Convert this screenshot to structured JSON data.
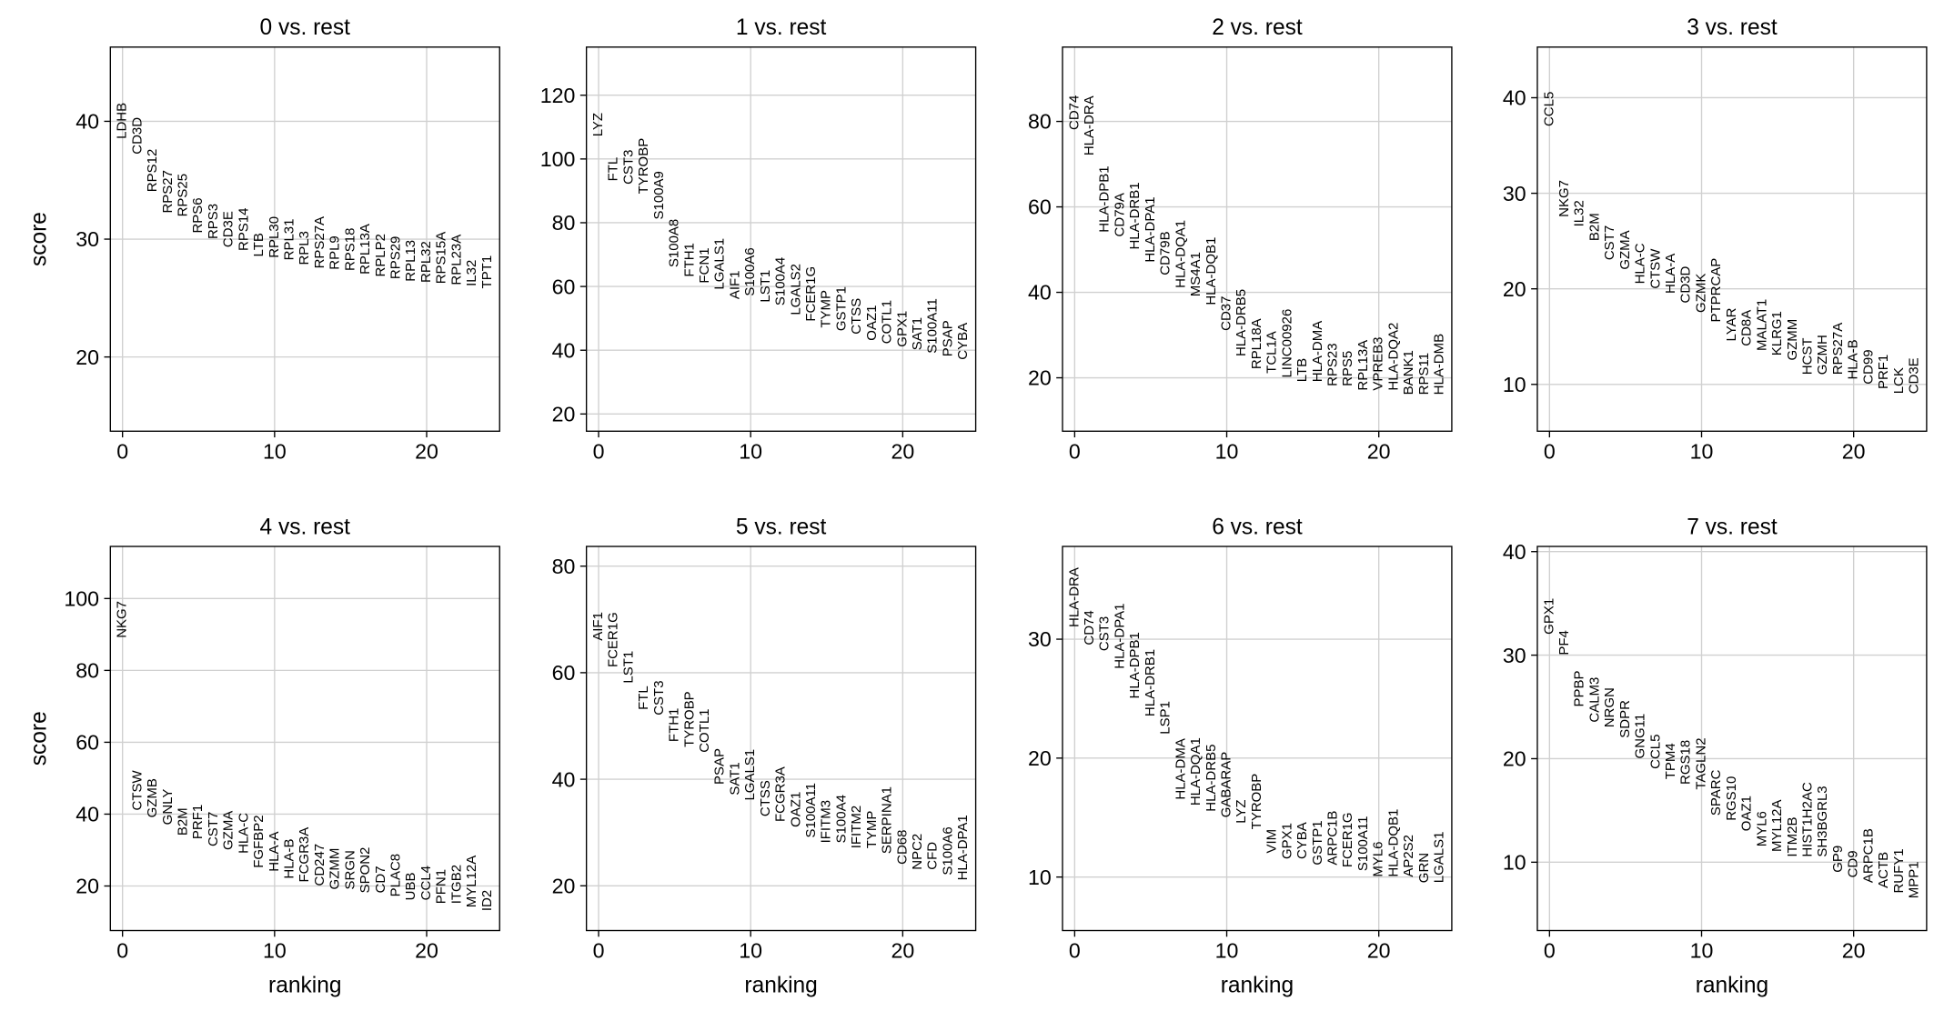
{
  "chart_data": [
    {
      "type": "scatter",
      "title": "0 vs. rest",
      "ylabel": "score",
      "x": [
        0,
        1,
        2,
        3,
        4,
        5,
        6,
        7,
        8,
        9,
        10,
        11,
        12,
        13,
        14,
        15,
        16,
        17,
        18,
        19,
        20,
        21,
        22,
        23,
        24
      ],
      "labels": [
        "LDHB",
        "CD3D",
        "RPS12",
        "RPS27",
        "RPS25",
        "RPS6",
        "RPS3",
        "CD3E",
        "RPS14",
        "LTB",
        "RPL30",
        "RPL31",
        "RPL3",
        "RPS27A",
        "RPL9",
        "RPS18",
        "RPL13A",
        "RPLP2",
        "RPS29",
        "RPL13",
        "RPL32",
        "RPS15A",
        "RPL23A",
        "IL32",
        "TPT1"
      ],
      "values": [
        38.5,
        37.2,
        34,
        32.2,
        31.9,
        30.5,
        30,
        29.3,
        29,
        28.5,
        28.4,
        28.2,
        27.8,
        27.5,
        27.4,
        27.3,
        27,
        26.8,
        26.6,
        26.4,
        26.3,
        26.2,
        26.1,
        26,
        25.8
      ],
      "xlim": [
        -0.8,
        24.8
      ],
      "ylim": [
        13.7,
        46.3
      ],
      "xticks": [
        0,
        10,
        20
      ],
      "yticks": [
        20,
        30,
        40
      ],
      "grid": true
    },
    {
      "type": "scatter",
      "title": "1 vs. rest",
      "x": [
        0,
        1,
        2,
        3,
        4,
        5,
        6,
        7,
        8,
        9,
        10,
        11,
        12,
        13,
        14,
        15,
        16,
        17,
        18,
        19,
        20,
        21,
        22,
        23,
        24
      ],
      "labels": [
        "LYZ",
        "FTL",
        "CST3",
        "TYROBP",
        "S100A9",
        "S100A8",
        "FTH1",
        "FCN1",
        "LGALS1",
        "AIF1",
        "S100A6",
        "LST1",
        "S100A4",
        "LGALS2",
        "FCER1G",
        "TYMP",
        "GSTP1",
        "CTSS",
        "OAZ1",
        "COTL1",
        "GPX1",
        "SAT1",
        "S100A11",
        "PSAP",
        "CYBA"
      ],
      "values": [
        107,
        93,
        92,
        89,
        81,
        66,
        63,
        61,
        59,
        56,
        57,
        55,
        54,
        51,
        49,
        47,
        46,
        45,
        43,
        42,
        41,
        40,
        39,
        38,
        37
      ],
      "xlim": [
        -0.8,
        24.8
      ],
      "ylim": [
        14.6,
        135.1
      ],
      "xticks": [
        0,
        10,
        20
      ],
      "yticks": [
        20,
        40,
        60,
        80,
        100,
        120
      ],
      "grid": true
    },
    {
      "type": "scatter",
      "title": "2 vs. rest",
      "x": [
        0,
        1,
        2,
        3,
        4,
        5,
        6,
        7,
        8,
        9,
        10,
        11,
        12,
        13,
        14,
        15,
        16,
        17,
        18,
        19,
        20,
        21,
        22,
        23,
        24
      ],
      "labels": [
        "CD74",
        "HLA-DRA",
        "HLA-DPB1",
        "CD79A",
        "HLA-DRB1",
        "HLA-DPA1",
        "CD79B",
        "HLA-DQA1",
        "MS4A1",
        "HLA-DQB1",
        "CD37",
        "HLA-DRB5",
        "RPL18A",
        "TCL1A",
        "LINC00926",
        "LTB",
        "HLA-DMA",
        "RPS23",
        "RPS5",
        "RPL13A",
        "VPREB3",
        "HLA-DQA2",
        "BANK1",
        "RPS11",
        "HLA-DMB"
      ],
      "values": [
        78,
        72,
        54,
        53,
        50,
        47,
        44,
        41,
        39,
        37,
        31,
        25,
        22,
        21,
        20,
        19,
        19,
        18,
        18,
        17,
        17,
        17,
        16,
        16,
        16
      ],
      "xlim": [
        -0.8,
        24.8
      ],
      "ylim": [
        7.5,
        97.4
      ],
      "xticks": [
        0,
        10,
        20
      ],
      "yticks": [
        20,
        40,
        60,
        80
      ],
      "grid": true
    },
    {
      "type": "scatter",
      "title": "3 vs. rest",
      "x": [
        0,
        1,
        2,
        3,
        4,
        5,
        6,
        7,
        8,
        9,
        10,
        11,
        12,
        13,
        14,
        15,
        16,
        17,
        18,
        19,
        20,
        21,
        22,
        23,
        24
      ],
      "labels": [
        "CCL5",
        "NKG7",
        "IL32",
        "B2M",
        "CST7",
        "GZMA",
        "HLA-C",
        "CTSW",
        "HLA-A",
        "CD3D",
        "GZMK",
        "PTPRCAP",
        "LYAR",
        "CD8A",
        "MALAT1",
        "KLRG1",
        "GZMM",
        "HCST",
        "GZMH",
        "RPS27A",
        "HLA-B",
        "CD99",
        "PRF1",
        "LCK",
        "CD3E"
      ],
      "values": [
        37,
        27.5,
        26.5,
        25,
        23,
        22,
        20.5,
        20,
        19.5,
        18.5,
        17.5,
        16.5,
        14.5,
        14,
        13.5,
        13,
        12.5,
        11,
        11,
        11,
        10.5,
        10,
        9.5,
        9,
        9
      ],
      "xlim": [
        -0.8,
        24.8
      ],
      "ylim": [
        5.1,
        45.3
      ],
      "xticks": [
        0,
        10,
        20
      ],
      "yticks": [
        10,
        20,
        30,
        40
      ],
      "grid": true
    },
    {
      "type": "scatter",
      "title": "4 vs. rest",
      "xlabel": "ranking",
      "ylabel": "score",
      "x": [
        0,
        1,
        2,
        3,
        4,
        5,
        6,
        7,
        8,
        9,
        10,
        11,
        12,
        13,
        14,
        15,
        16,
        17,
        18,
        19,
        20,
        21,
        22,
        23,
        24
      ],
      "labels": [
        "NKG7",
        "CTSW",
        "GZMB",
        "GNLY",
        "B2M",
        "PRF1",
        "CST7",
        "GZMA",
        "HLA-C",
        "FGFBP2",
        "HLA-A",
        "HLA-B",
        "FCGR3A",
        "CD247",
        "GZMM",
        "SRGN",
        "SPON2",
        "CD7",
        "PLAC8",
        "UBB",
        "CCL4",
        "PFN1",
        "ITGB2",
        "MYL12A",
        "ID2"
      ],
      "values": [
        89,
        41,
        39,
        37,
        34,
        33,
        31,
        30,
        29,
        25,
        24,
        22,
        21,
        20,
        19,
        19,
        18,
        18,
        17,
        16,
        16,
        15,
        15,
        14,
        13
      ],
      "xlim": [
        -0.8,
        24.8
      ],
      "ylim": [
        7.6,
        114.5
      ],
      "xticks": [
        0,
        10,
        20
      ],
      "yticks": [
        20,
        40,
        60,
        80,
        100
      ],
      "grid": true
    },
    {
      "type": "scatter",
      "title": "5 vs. rest",
      "xlabel": "ranking",
      "x": [
        0,
        1,
        2,
        3,
        4,
        5,
        6,
        7,
        8,
        9,
        10,
        11,
        12,
        13,
        14,
        15,
        16,
        17,
        18,
        19,
        20,
        21,
        22,
        23,
        24
      ],
      "labels": [
        "AIF1",
        "FCER1G",
        "LST1",
        "FTL",
        "CST3",
        "FTH1",
        "TYROBP",
        "COTL1",
        "PSAP",
        "SAT1",
        "LGALS1",
        "CTSS",
        "FCGR3A",
        "OAZ1",
        "S100A11",
        "IFITM3",
        "S100A4",
        "IFITM2",
        "TYMP",
        "SERPINA1",
        "CD68",
        "NPC2",
        "CFD",
        "S100A6",
        "HLA-DPA1"
      ],
      "values": [
        66,
        61,
        58,
        53,
        52,
        47,
        46,
        45,
        39,
        37,
        36,
        33,
        32,
        31,
        29,
        28,
        28,
        27,
        27,
        26,
        24,
        23,
        23,
        22,
        21
      ],
      "xlim": [
        -0.8,
        24.8
      ],
      "ylim": [
        11.6,
        83.7
      ],
      "xticks": [
        0,
        10,
        20
      ],
      "yticks": [
        20,
        40,
        60,
        80
      ],
      "grid": true
    },
    {
      "type": "scatter",
      "title": "6 vs. rest",
      "xlabel": "ranking",
      "x": [
        0,
        1,
        2,
        3,
        4,
        5,
        6,
        7,
        8,
        9,
        10,
        11,
        12,
        13,
        14,
        15,
        16,
        17,
        18,
        19,
        20,
        21,
        22,
        23,
        24
      ],
      "labels": [
        "HLA-DRA",
        "CD74",
        "CST3",
        "HLA-DPA1",
        "HLA-DPB1",
        "HLA-DRB1",
        "LSP1",
        "HLA-DMA",
        "HLA-DQA1",
        "HLA-DRB5",
        "GABARAP",
        "LYZ",
        "TYROBP",
        "VIM",
        "GPX1",
        "CYBA",
        "GSTP1",
        "ARPC1B",
        "FCER1G",
        "S100A11",
        "MYL6",
        "HLA-DQB1",
        "AP2S2",
        "GRN",
        "LGALS1"
      ],
      "values": [
        31,
        29.5,
        29,
        27.5,
        25,
        23.5,
        22,
        16.5,
        16,
        15.5,
        15,
        14.5,
        14,
        12,
        11.5,
        11.5,
        11,
        11,
        10.8,
        10.5,
        10,
        10,
        10,
        9.5,
        9.5
      ],
      "xlim": [
        -0.8,
        24.8
      ],
      "ylim": [
        5.5,
        37.8
      ],
      "xticks": [
        0,
        10,
        20
      ],
      "yticks": [
        10,
        20,
        30
      ],
      "grid": true
    },
    {
      "type": "scatter",
      "title": "7 vs. rest",
      "xlabel": "ranking",
      "x": [
        0,
        1,
        2,
        3,
        4,
        5,
        6,
        7,
        8,
        9,
        10,
        11,
        12,
        13,
        14,
        15,
        16,
        17,
        18,
        19,
        20,
        21,
        22,
        23,
        24
      ],
      "labels": [
        "GPX1",
        "PF4",
        "PPBP",
        "CALM3",
        "NRGN",
        "SDPR",
        "GNG11",
        "CCL5",
        "TPM4",
        "RGS18",
        "TAGLN2",
        "SPARC",
        "RGS10",
        "OAZ1",
        "MYL6",
        "MYL12A",
        "ITM2B",
        "HIST1H2AC",
        "SH3BGRL3",
        "GP9",
        "CD9",
        "ARPC1B",
        "ACTB",
        "RUFY1",
        "MPP1"
      ],
      "values": [
        32,
        30,
        25,
        23.5,
        23,
        22,
        20,
        19,
        18,
        17.5,
        17,
        14.5,
        14,
        13,
        11.5,
        11,
        10.5,
        10.5,
        10.5,
        9,
        8.5,
        8,
        7.5,
        7,
        6.5
      ],
      "xlim": [
        -0.8,
        24.8
      ],
      "ylim": [
        3.4,
        40.5
      ],
      "xticks": [
        0,
        10,
        20
      ],
      "yticks": [
        10,
        20,
        30,
        40
      ],
      "grid": true
    }
  ]
}
